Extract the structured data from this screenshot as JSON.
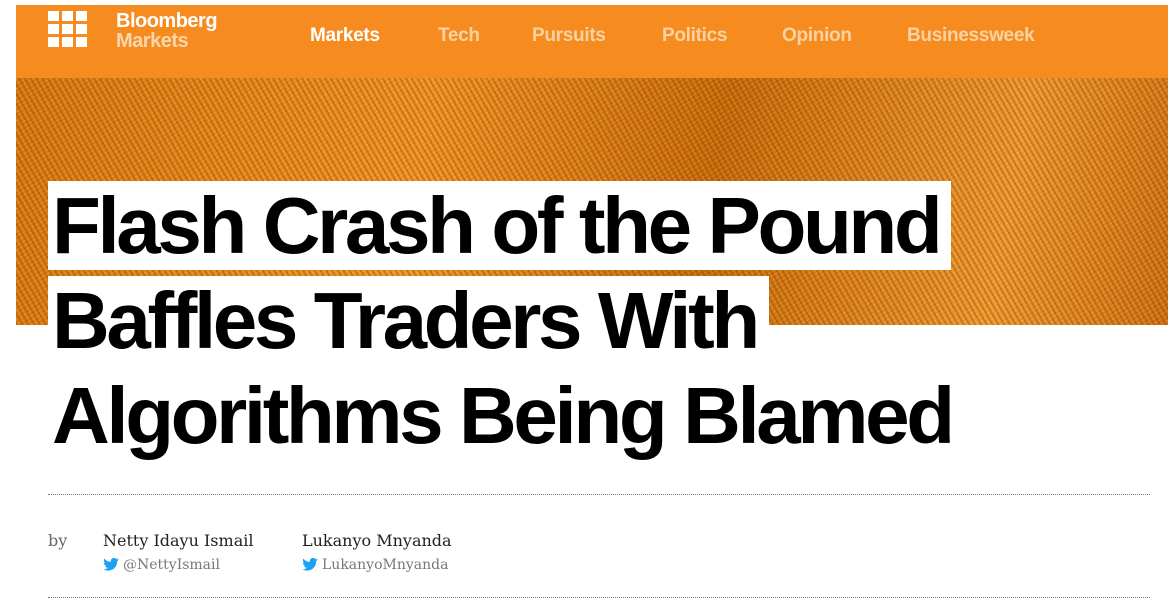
{
  "header": {
    "logo": {
      "brand": "Bloomberg",
      "section": "Markets"
    },
    "nav": [
      "Markets",
      "Tech",
      "Pursuits",
      "Politics",
      "Opinion",
      "Businessweek"
    ]
  },
  "article": {
    "headline": "Flash Crash of the Pound Baffles Traders With Algorithms Being Blamed",
    "byline": {
      "prefix": "by",
      "authors": [
        {
          "name": "Netty Idayu Ismail",
          "twitter": "@NettyIsmail"
        },
        {
          "name": "Lukanyo Mnyanda",
          "twitter": "LukanyoMnyanda"
        }
      ]
    }
  }
}
